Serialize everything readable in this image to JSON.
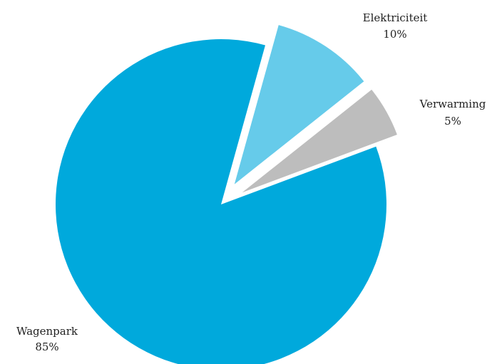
{
  "chart_data": {
    "type": "pie",
    "slices": [
      {
        "label": "Wagenpark",
        "value": 85,
        "display": "85%",
        "color": "#00a9dc",
        "exploded": false
      },
      {
        "label": "Elektriciteit",
        "value": 10,
        "display": "10%",
        "color": "#66cbea",
        "exploded": true
      },
      {
        "label": "Verwarming",
        "value": 5,
        "display": "5%",
        "color": "#bdbdbd",
        "exploded": true
      }
    ],
    "legend": "none",
    "labels": "outside"
  }
}
